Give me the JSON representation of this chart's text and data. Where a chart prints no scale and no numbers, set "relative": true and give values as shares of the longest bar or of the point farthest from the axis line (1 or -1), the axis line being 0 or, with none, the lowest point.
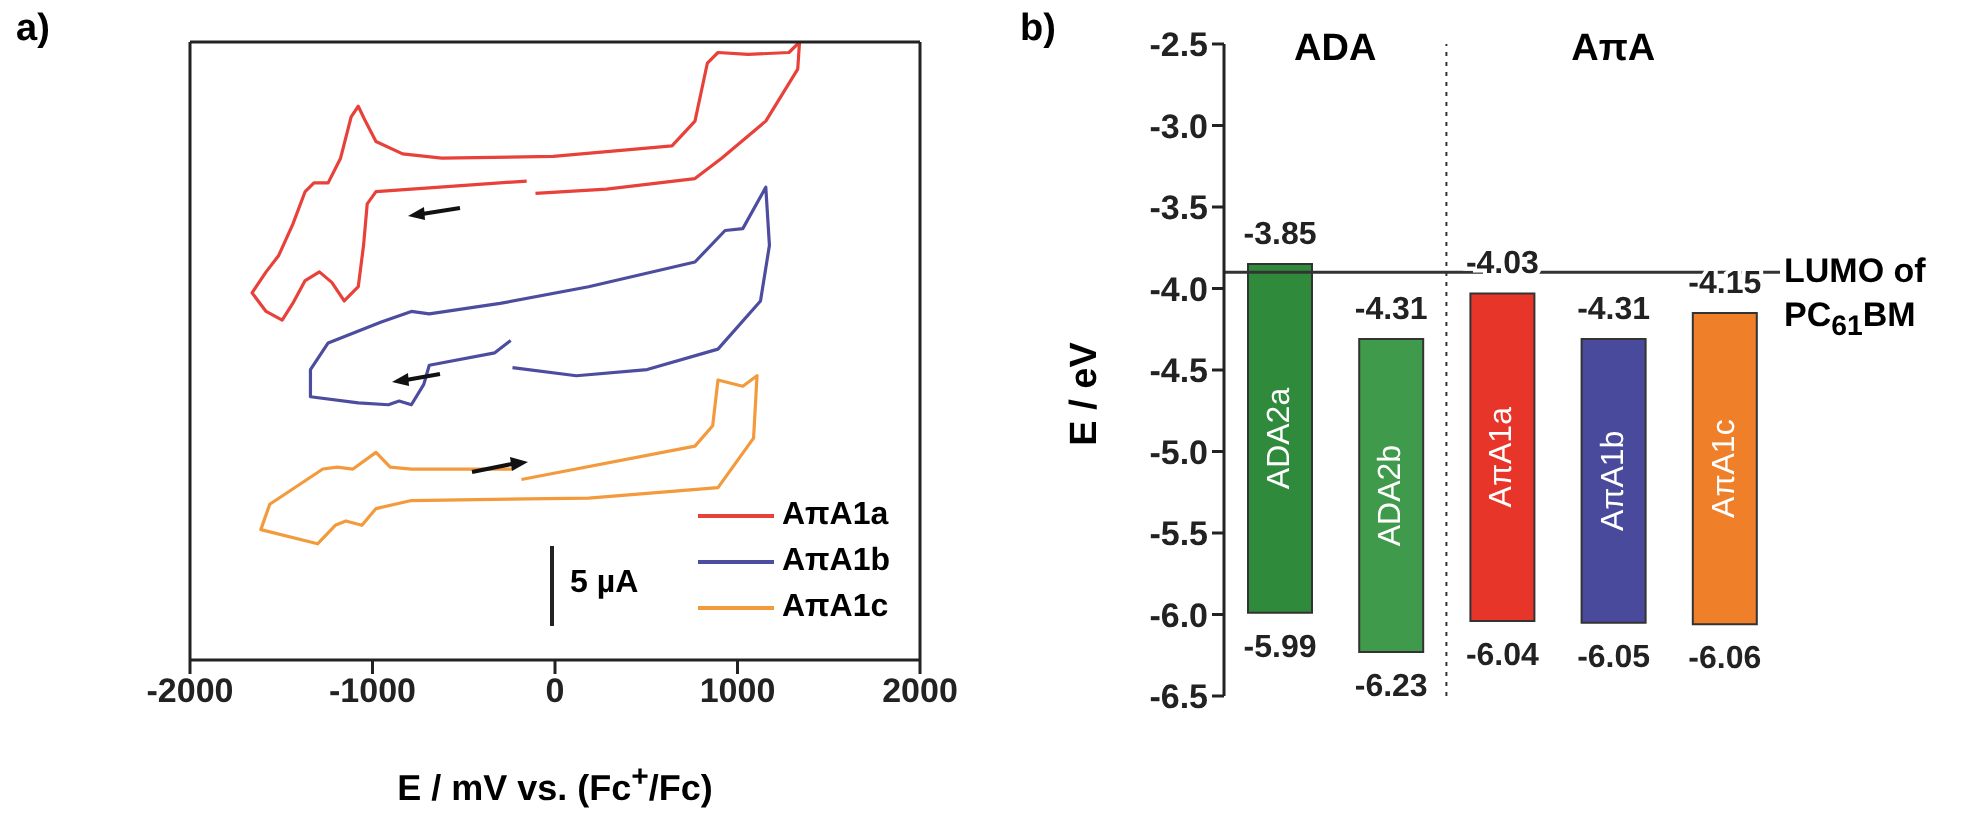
{
  "chart_data": [
    {
      "type": "line",
      "title": "a)",
      "xlabel": "E / mV vs. (Fc$^{+}$/Fc)",
      "relative": true,
      "xlim": [
        -2000,
        2000
      ],
      "xticks": [
        -2000,
        -1000,
        0,
        1000,
        2000
      ],
      "legend": "bottom right",
      "annotations": [
        "5 µA"
      ],
      "series": [
        {
          "name": "AπA1a",
          "color": "#e8413a",
          "x": [
            -155,
            -495,
            -981,
            -1029,
            -1049,
            -1078,
            -1155,
            -1223,
            -1291,
            -1369,
            -1437,
            -1495,
            -1583,
            -1660,
            -1583,
            -1515,
            -1437,
            -1369,
            -1321,
            -1243,
            -1175,
            -1117,
            -1078,
            -1039,
            -981,
            -835,
            -621,
            -10,
            641,
            767,
            835,
            893,
            1058,
            1282,
            1340,
            1330,
            1155,
            913,
            767,
            282,
            -107
          ],
          "values": [
            0.775,
            0.768,
            0.758,
            0.738,
            0.671,
            0.604,
            0.581,
            0.611,
            0.628,
            0.614,
            0.577,
            0.55,
            0.564,
            0.594,
            0.628,
            0.654,
            0.705,
            0.758,
            0.772,
            0.772,
            0.812,
            0.879,
            0.896,
            0.872,
            0.839,
            0.819,
            0.812,
            0.815,
            0.832,
            0.872,
            0.966,
            0.983,
            0.98,
            0.983,
            1,
            0.956,
            0.872,
            0.812,
            0.779,
            0.762,
            0.755
          ]
        },
        {
          "name": "AπA1b",
          "color": "#4d4d9f",
          "x": [
            -243,
            -330,
            -689,
            -719,
            -787,
            -854,
            -913,
            -1078,
            -1340,
            -1340,
            -1243,
            -952,
            -787,
            -689,
            -301,
            184,
            767,
            932,
            1029,
            1155,
            1175,
            1126,
            893,
            505,
            117,
            -233
          ],
          "values": [
            0.517,
            0.497,
            0.477,
            0.446,
            0.413,
            0.419,
            0.413,
            0.416,
            0.426,
            0.47,
            0.513,
            0.547,
            0.564,
            0.56,
            0.577,
            0.604,
            0.644,
            0.695,
            0.698,
            0.765,
            0.671,
            0.581,
            0.503,
            0.47,
            0.46,
            0.473
          ]
        },
        {
          "name": "AπA1c",
          "color": "#f39a3c",
          "x": [
            -184,
            767,
            864,
            893,
            1029,
            1107,
            1088,
            893,
            184,
            -787,
            -981,
            -1058,
            -1146,
            -1204,
            -1301,
            -1612,
            -1563,
            -1272,
            -1194,
            -1107,
            -981,
            -903,
            -787,
            -233
          ],
          "values": [
            0.292,
            0.346,
            0.379,
            0.453,
            0.443,
            0.46,
            0.359,
            0.279,
            0.262,
            0.258,
            0.245,
            0.218,
            0.225,
            0.218,
            0.188,
            0.211,
            0.252,
            0.309,
            0.312,
            0.309,
            0.336,
            0.312,
            0.309,
            0.309
          ]
        }
      ]
    },
    {
      "type": "bar",
      "title": "b)",
      "ylabel": "E / eV",
      "categories": [
        "ADA2a",
        "ADA2b",
        "AπA1a",
        "AπA1b",
        "AπA1c"
      ],
      "base": [
        -5.99,
        -6.23,
        -6.04,
        -6.05,
        -6.06
      ],
      "values": [
        2.14,
        1.92,
        2.01,
        1.74,
        1.91
      ],
      "colors": [
        "#2f8a3c",
        "#3f9a4c",
        "#e8352a",
        "#4a4a9c",
        "#f07f2a"
      ],
      "ylim": [
        -6.5,
        -2.5
      ],
      "yticks": [
        {
          "value": -6.5,
          "label": "-6.5"
        },
        {
          "value": -6,
          "label": "-6.0"
        },
        {
          "value": -5.5,
          "label": "-5.5"
        },
        {
          "value": -5,
          "label": "-5.0"
        },
        {
          "value": -4.5,
          "label": "-4.5"
        },
        {
          "value": -4,
          "label": "-4.0"
        },
        {
          "value": -3.5,
          "label": "-3.5"
        },
        {
          "value": -3,
          "label": "-3.0"
        },
        {
          "value": -2.5,
          "label": "-2.5"
        }
      ],
      "tick_labels": "y",
      "ref_lines": [
        {
          "axis": "y",
          "value": -3.9,
          "label": "LUMO of PC$_{61}$BM",
          "color": "#333333"
        }
      ],
      "annotations": [
        "ADA",
        "AπA",
        {
          "text": "-3.85",
          "x": "ADA2a",
          "y": -3.85
        },
        {
          "text": "-4.31",
          "x": "ADA2b",
          "y": -4.31
        },
        {
          "text": "-4.03",
          "x": "AπA1a",
          "y": -4.03
        },
        {
          "text": "-4.31",
          "x": "AπA1b",
          "y": -4.31
        },
        {
          "text": "-4.15",
          "x": "AπA1c",
          "y": -4.15
        },
        {
          "text": "-5.99",
          "x": "ADA2a",
          "y": -5.99
        },
        {
          "text": "-6.23",
          "x": "ADA2b",
          "y": -6.23
        },
        {
          "text": "-6.04",
          "x": "AπA1a",
          "y": -6.04
        },
        {
          "text": "-6.05",
          "x": "AπA1b",
          "y": -6.05
        },
        {
          "text": "-6.06",
          "x": "AπA1c",
          "y": -6.06
        }
      ]
    }
  ]
}
